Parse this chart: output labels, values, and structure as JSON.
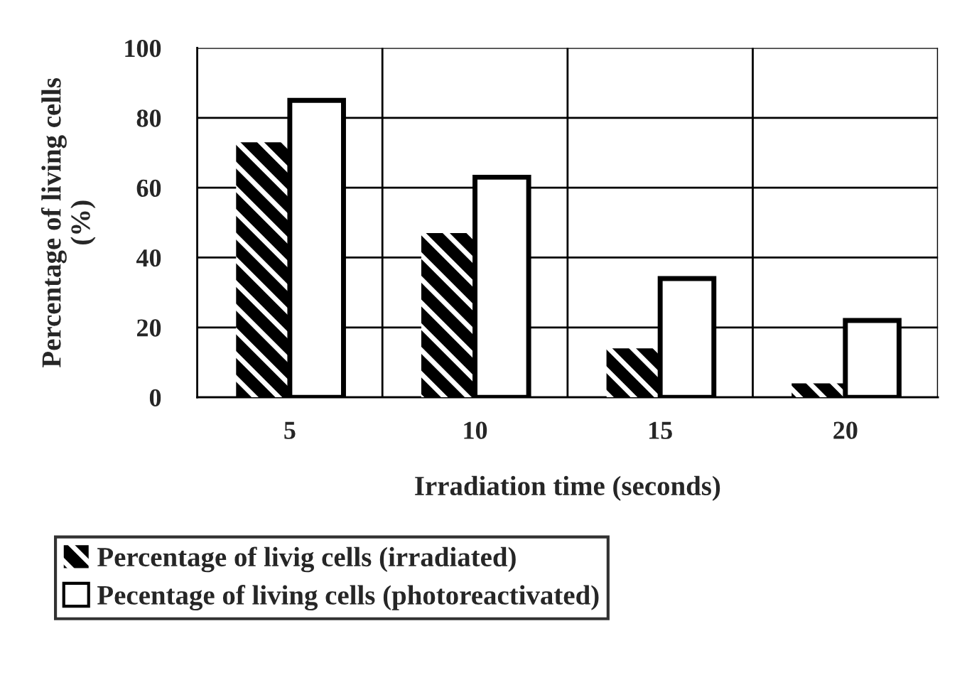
{
  "chart_data": {
    "type": "bar",
    "xlabel": "Irradiation time (seconds)",
    "ylabel": "Percentage of living cells\n(%)",
    "categories": [
      "5",
      "10",
      "15",
      "20"
    ],
    "series": [
      {
        "name": "Percentage of livig cells (irradiated)",
        "color": "#000000",
        "values": [
          73,
          47,
          14,
          4
        ]
      },
      {
        "name": "Pecentage of living cells (photoreactivated)",
        "color": "#ffffff",
        "values": [
          85,
          63,
          34,
          22
        ]
      }
    ],
    "ylim": [
      0,
      100
    ],
    "yticks": [
      0,
      20,
      40,
      60,
      80,
      100
    ],
    "grid": true,
    "legend": "bottom"
  }
}
